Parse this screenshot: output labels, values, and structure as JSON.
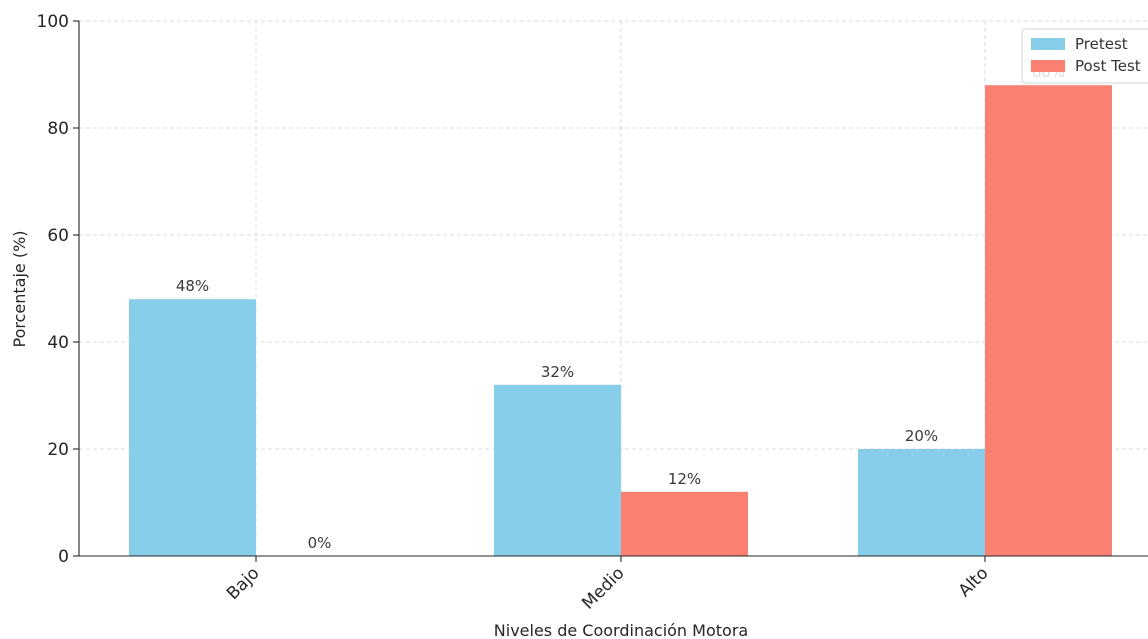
{
  "chart_data": {
    "type": "bar",
    "categories": [
      "Bajo",
      "Medio",
      "Alto"
    ],
    "series": [
      {
        "name": "Pretest",
        "values": [
          48,
          32,
          20
        ],
        "labels": [
          "48%",
          "32%",
          "20%"
        ],
        "color": "#87CEEB"
      },
      {
        "name": "Post Test",
        "values": [
          0,
          12,
          88
        ],
        "labels": [
          "0%",
          "12%",
          "88%"
        ],
        "color": "#FA8072"
      }
    ],
    "title": "",
    "xlabel": "Niveles de Coordinación Motora",
    "ylabel": "Porcentaje (%)",
    "ylim": [
      0,
      100
    ],
    "yticks": [
      0,
      20,
      40,
      60,
      80,
      100
    ],
    "grid": true,
    "legend_position": "top-right"
  }
}
